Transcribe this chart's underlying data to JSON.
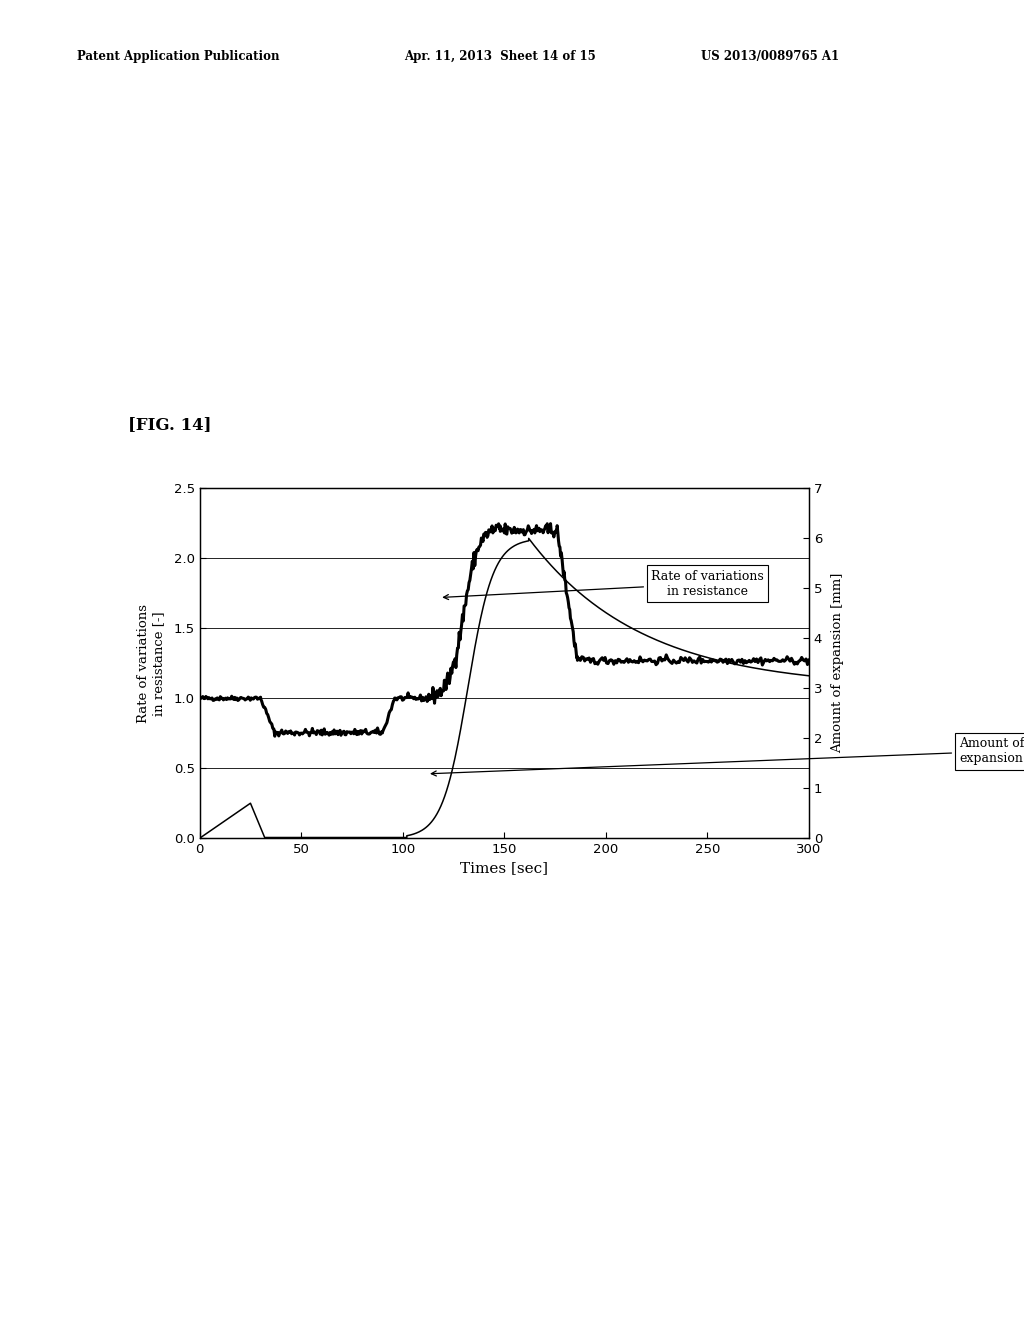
{
  "header_left": "Patent Application Publication",
  "header_mid": "Apr. 11, 2013  Sheet 14 of 15",
  "header_right": "US 2013/0089765 A1",
  "fig_label": "[FIG. 14]",
  "xlabel": "Times [sec]",
  "ylabel_left": "Rate of variations\nin resistance [-]",
  "ylabel_right": "Amount of expansion [mm]",
  "xlim": [
    0,
    300
  ],
  "ylim_left": [
    0,
    2.5
  ],
  "ylim_right": [
    0,
    7
  ],
  "xticks": [
    0,
    50,
    100,
    150,
    200,
    250,
    300
  ],
  "yticks_left": [
    0,
    0.5,
    1.0,
    1.5,
    2.0,
    2.5
  ],
  "yticks_right": [
    0,
    1,
    2,
    3,
    4,
    5,
    6,
    7
  ],
  "bg_color": "#ffffff",
  "line_color": "#000000",
  "annotation1_text": "Rate of variations\nin resistance",
  "annotation2_text": "Amount of\nexpansion"
}
